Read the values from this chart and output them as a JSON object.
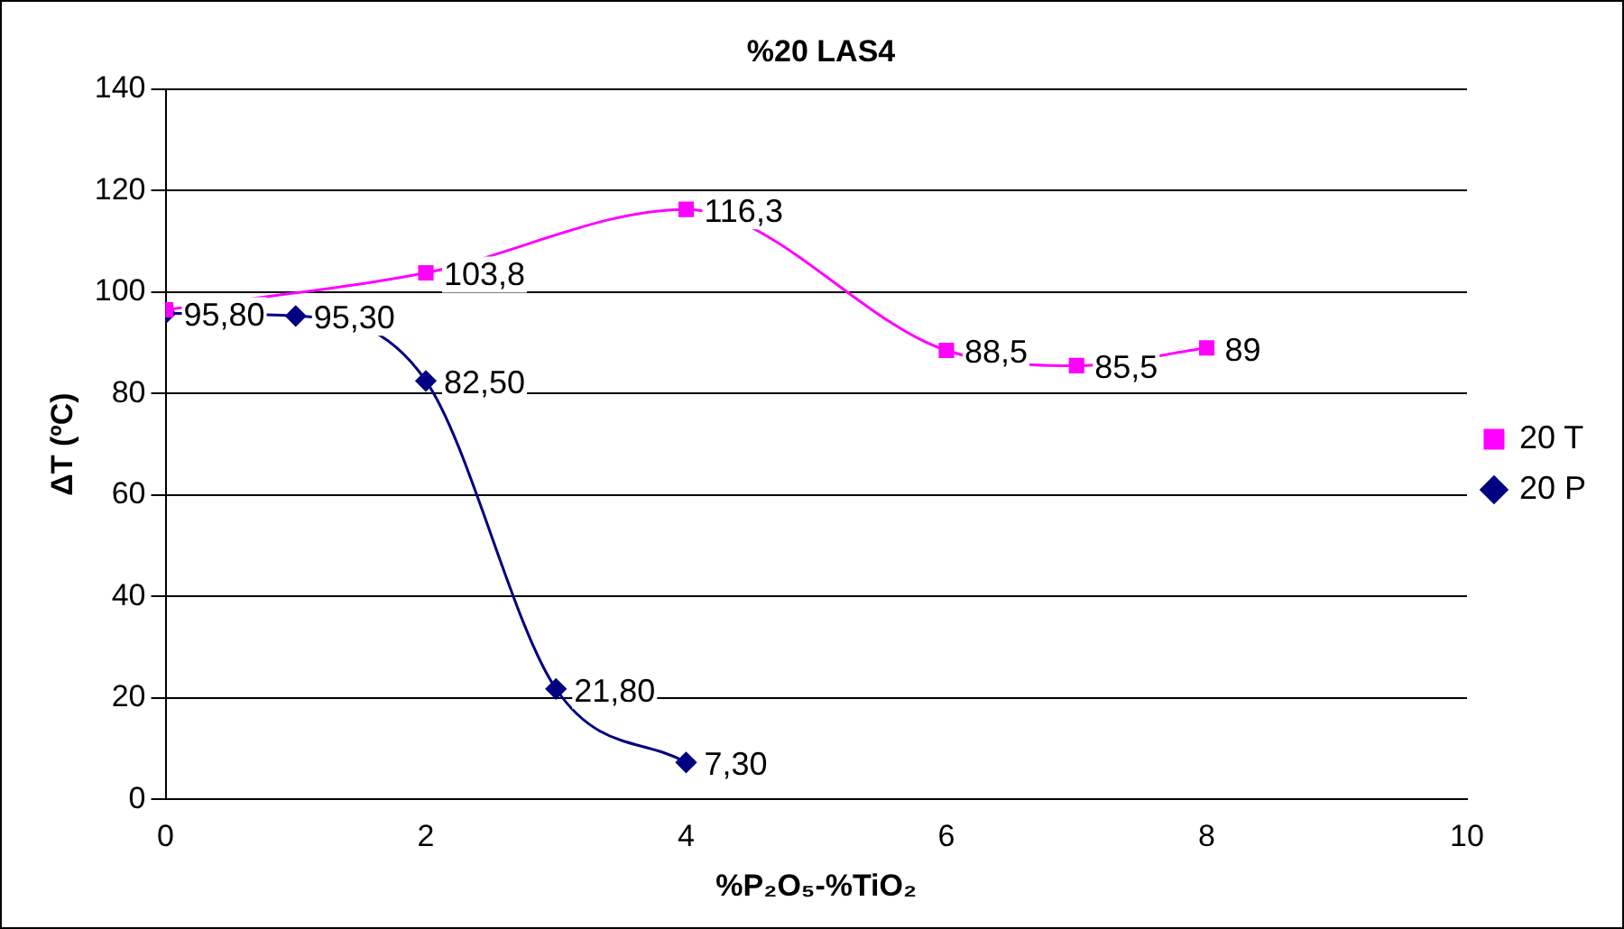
{
  "chart_data": {
    "type": "line",
    "title": "%20 LAS4",
    "xlabel": "%P₂O₅-%TiO₂",
    "ylabel": "ΔT (ºC)",
    "xlim": [
      0,
      10
    ],
    "xticks": [
      0,
      2,
      4,
      6,
      8,
      10
    ],
    "ylim": [
      0,
      140
    ],
    "yticks": [
      0,
      20,
      40,
      60,
      80,
      100,
      120,
      140
    ],
    "grid": "y",
    "legend": "right",
    "series": [
      {
        "name": "20 P",
        "color": "#000080",
        "marker": "diamond",
        "x": [
          0,
          1,
          2,
          3,
          4
        ],
        "values": [
          95.8,
          95.3,
          82.5,
          21.8,
          7.3
        ],
        "value_labels": [
          "95,80",
          "95,30",
          "82,50",
          "21,80",
          "7,30"
        ]
      },
      {
        "name": "20 T",
        "color": "#ff00ff",
        "marker": "square",
        "x": [
          0,
          2,
          4,
          6,
          7,
          8
        ],
        "values": [
          96.5,
          103.8,
          116.3,
          88.5,
          85.5,
          89
        ],
        "value_labels": [
          null,
          "103,8",
          "116,3",
          "88,5",
          "85,5",
          "89"
        ]
      }
    ]
  }
}
